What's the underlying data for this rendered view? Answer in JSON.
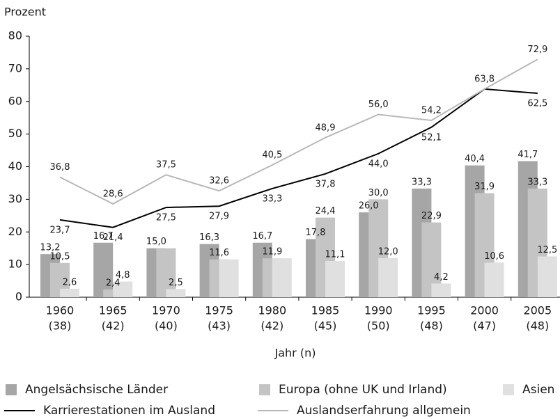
{
  "chart_data": {
    "type": "bar",
    "ylabel": "Prozent",
    "xlabel": "Jahr (n)",
    "categories": [
      "1960",
      "1965",
      "1970",
      "1975",
      "1980",
      "1985",
      "1990",
      "1995",
      "2000",
      "2005"
    ],
    "category_counts": [
      "(38)",
      "(42)",
      "(40)",
      "(43)",
      "(42)",
      "(45)",
      "(50)",
      "(48)",
      "(47)",
      "(48)"
    ],
    "ylim": [
      0,
      80
    ],
    "yticks": [
      0,
      10,
      20,
      30,
      40,
      50,
      60,
      70,
      80
    ],
    "series": [
      {
        "name": "Angelsächsische Länder",
        "type": "bar",
        "color": "#a6a6a6",
        "values": [
          13.2,
          16.7,
          15.0,
          16.3,
          16.7,
          17.8,
          26.0,
          33.3,
          40.4,
          41.7
        ],
        "value_labels": [
          "13,2",
          "16,7",
          "15,0",
          "16,3",
          "16,7",
          "17,8",
          "26,0",
          "33,3",
          "40,4",
          "41,7"
        ]
      },
      {
        "name": "Europa (ohne UK und Irland)",
        "type": "bar",
        "color": "#c4c4c4",
        "values": [
          10.5,
          2.4,
          15.0,
          11.6,
          11.9,
          24.4,
          30.0,
          22.9,
          31.9,
          33.3
        ],
        "value_labels": [
          "10,5",
          "2,4",
          null,
          "11,6",
          "11,9",
          "24,4",
          "30,0",
          "22,9",
          "31,9",
          "33,3"
        ]
      },
      {
        "name": "Asien",
        "type": "bar",
        "color": "#e0e0e0",
        "values": [
          2.6,
          4.8,
          2.5,
          11.6,
          11.9,
          11.1,
          12.0,
          4.2,
          10.6,
          12.5
        ],
        "value_labels": [
          "2,6",
          "4,8",
          "2,5",
          null,
          null,
          "11,1",
          "12,0",
          "4,2",
          "10,6",
          "12,5"
        ]
      },
      {
        "name": "Karrierestationen im Ausland",
        "type": "line",
        "color": "#000000",
        "values": [
          23.7,
          21.4,
          27.5,
          27.9,
          33.3,
          37.8,
          44.0,
          52.1,
          63.8,
          62.5
        ],
        "value_labels": [
          "23,7",
          "21,4",
          "27,5",
          "27,9",
          "33,3",
          "37,8",
          "44,0",
          "52,1",
          null,
          "62,5"
        ]
      },
      {
        "name": "Auslandserfahrung allgemein",
        "type": "line",
        "color": "#b8b8b8",
        "values": [
          36.8,
          28.6,
          37.5,
          32.6,
          40.5,
          48.9,
          56.0,
          54.2,
          63.8,
          72.9
        ],
        "value_labels": [
          "36,8",
          "28,6",
          "37,5",
          "32,6",
          "40,5",
          "48,9",
          "56,0",
          "54,2",
          "63,8",
          "72,9"
        ]
      }
    ]
  }
}
